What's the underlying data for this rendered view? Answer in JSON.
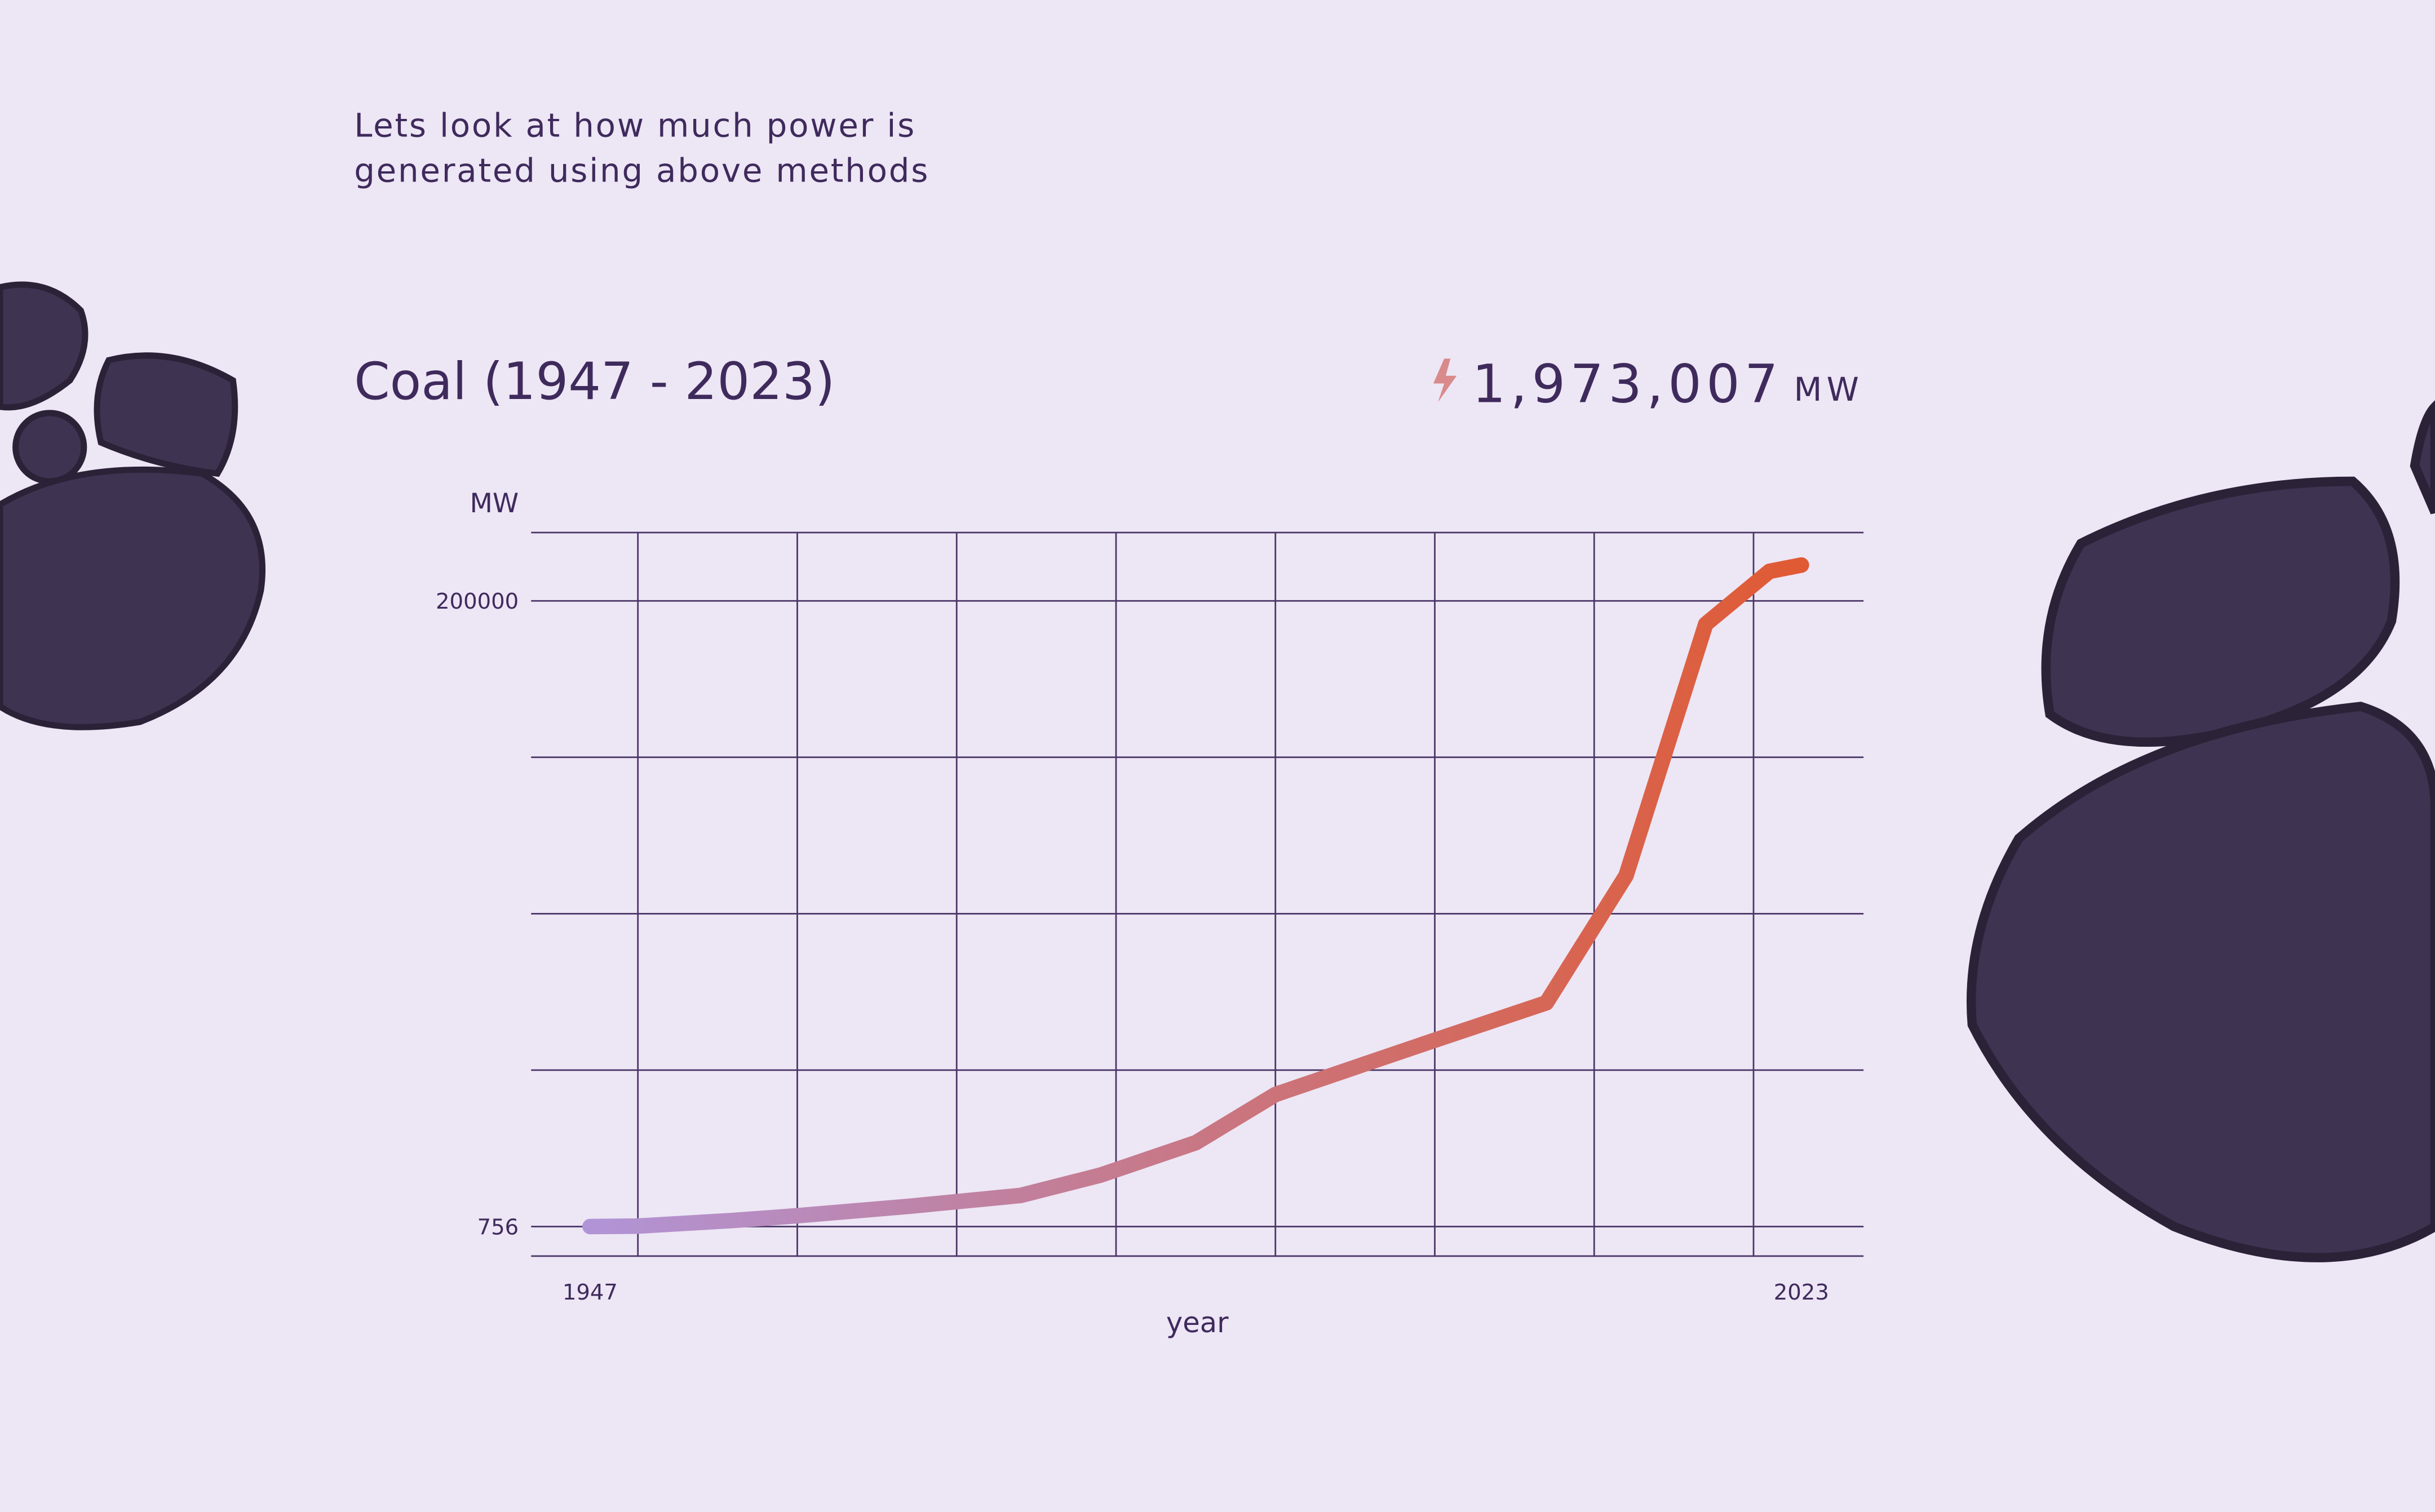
{
  "intro": [
    "Lets look at how much power is",
    "generated using above methods"
  ],
  "header": {
    "title": "Coal (1947 - 2023)",
    "total": "1,973,007",
    "unit": "MW"
  },
  "chart_data": {
    "type": "line",
    "ylabel": "MW",
    "xlabel": "year",
    "x": [
      1947,
      1950,
      1956,
      1960,
      1967,
      1974,
      1979,
      1985,
      1990,
      1996,
      2000,
      2007,
      2012,
      2017,
      2021,
      2023
    ],
    "series": [
      {
        "name": "Coal",
        "color": "#b194d6",
        "color_end": "#e05a33",
        "values": [
          756,
          900,
          2700,
          4200,
          7200,
          10650,
          17100,
          27450,
          42800,
          53200,
          60100,
          72000,
          112500,
          192600,
          209400,
          211400
        ]
      }
    ],
    "xlim": [
      1943.3,
      2026.9
    ],
    "xticks": [
      1947,
      2023
    ],
    "xgrid": [
      1950,
      1960,
      1970,
      1980,
      1990,
      2000,
      2010,
      2020
    ],
    "ylim": [
      -8638,
      221754
    ],
    "yticks": [
      756,
      200000
    ],
    "ygrid": [
      50567,
      100378,
      150189
    ],
    "grid": true
  }
}
